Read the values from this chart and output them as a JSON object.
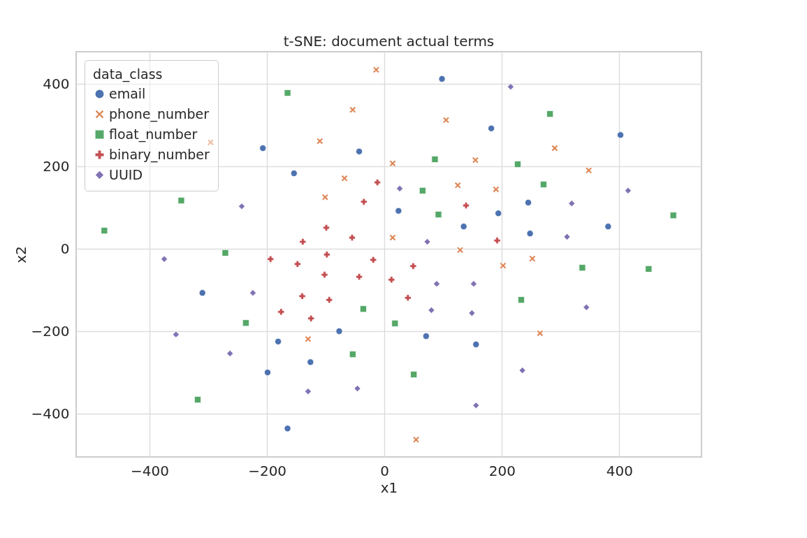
{
  "chart_data": {
    "type": "scatter",
    "title": "t-SNE: document actual terms",
    "xlabel": "x1",
    "ylabel": "x2",
    "legend_title": "data_class",
    "legend": "top left",
    "grid": true,
    "xlim": [
      -525,
      540
    ],
    "ylim": [
      -505,
      478
    ],
    "xticks": [
      {
        "value": -400,
        "label": "−400"
      },
      {
        "value": -200,
        "label": "−200"
      },
      0,
      200,
      400
    ],
    "yticks": [
      {
        "value": -400,
        "label": "−400"
      },
      {
        "value": -200,
        "label": "−200"
      },
      0,
      200,
      400
    ],
    "series": [
      {
        "name": "email",
        "color": "#4c72b0",
        "marker": "circle",
        "x": [
          98,
          182,
          402,
          -43,
          -154,
          -207,
          24,
          194,
          245,
          135,
          248,
          381,
          -310,
          -77,
          -181,
          -126,
          -199,
          71,
          156,
          -165
        ],
        "values": [
          412,
          292,
          276,
          236,
          183,
          244,
          92,
          86,
          112,
          54,
          37,
          54,
          -107,
          -200,
          -225,
          -275,
          -300,
          -212,
          -232,
          -436
        ]
      },
      {
        "name": "phone_number",
        "color": "#dd8452",
        "marker": "x",
        "x": [
          -14,
          -54,
          105,
          -110,
          -296,
          14,
          -68,
          155,
          290,
          348,
          -101,
          125,
          190,
          14,
          129,
          252,
          202,
          -130,
          265,
          54
        ],
        "values": [
          434,
          337,
          312,
          261,
          258,
          207,
          171,
          215,
          244,
          190,
          125,
          154,
          144,
          27,
          -3,
          -24,
          -41,
          -219,
          -205,
          -463
        ]
      },
      {
        "name": "float_number",
        "color": "#55a868",
        "marker": "square",
        "x": [
          -165,
          282,
          86,
          227,
          271,
          65,
          92,
          492,
          -477,
          -271,
          -346,
          337,
          450,
          233,
          -36,
          18,
          -236,
          -54,
          50,
          -318
        ],
        "values": [
          378,
          327,
          217,
          205,
          156,
          141,
          83,
          81,
          44,
          -10,
          117,
          -46,
          -49,
          -124,
          -146,
          -181,
          -180,
          -256,
          -305,
          -366
        ]
      },
      {
        "name": "binary_number",
        "color": "#c44e52",
        "marker": "cross",
        "x": [
          139,
          -35,
          -12,
          -99,
          -139,
          -55,
          -194,
          -98,
          192,
          -19,
          -148,
          -102,
          -43,
          12,
          49,
          -140,
          -94,
          40,
          -176,
          -125
        ],
        "values": [
          105,
          114,
          161,
          51,
          17,
          27,
          -25,
          -14,
          20,
          -27,
          -37,
          -63,
          -68,
          -75,
          -42,
          -115,
          -124,
          -119,
          -153,
          -169
        ]
      },
      {
        "name": "UUID",
        "color": "#8172b3",
        "marker": "diamond",
        "x": [
          215,
          26,
          415,
          319,
          73,
          311,
          -243,
          -375,
          -224,
          89,
          152,
          80,
          149,
          344,
          -355,
          -263,
          -130,
          -46,
          235,
          156
        ],
        "values": [
          393,
          146,
          141,
          110,
          17,
          29,
          103,
          -25,
          -107,
          -85,
          -85,
          -149,
          -156,
          -142,
          -208,
          -254,
          -346,
          -339,
          -295,
          -380
        ]
      }
    ]
  }
}
